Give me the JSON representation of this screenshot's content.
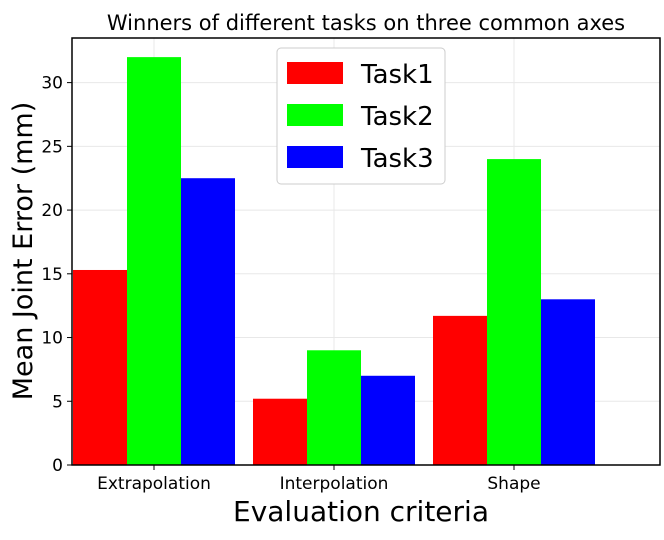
{
  "chart_data": {
    "type": "bar",
    "title": "Winners of different tasks on three common axes",
    "xlabel": "Evaluation criteria",
    "ylabel": "Mean Joint Error (mm)",
    "categories": [
      "Extrapolation",
      "Interpolation",
      "Shape"
    ],
    "series": [
      {
        "name": "Task1",
        "color": "#ff0000",
        "values": [
          15.3,
          5.2,
          11.7
        ]
      },
      {
        "name": "Task2",
        "color": "#00ff00",
        "values": [
          32.0,
          9.0,
          24.0
        ]
      },
      {
        "name": "Task3",
        "color": "#0000ff",
        "values": [
          22.5,
          7.0,
          13.0
        ]
      }
    ],
    "ylim": [
      0,
      33.5
    ],
    "yticks": [
      0,
      5,
      10,
      15,
      20,
      25,
      30
    ],
    "grid": true,
    "legend_position": "top-center"
  }
}
